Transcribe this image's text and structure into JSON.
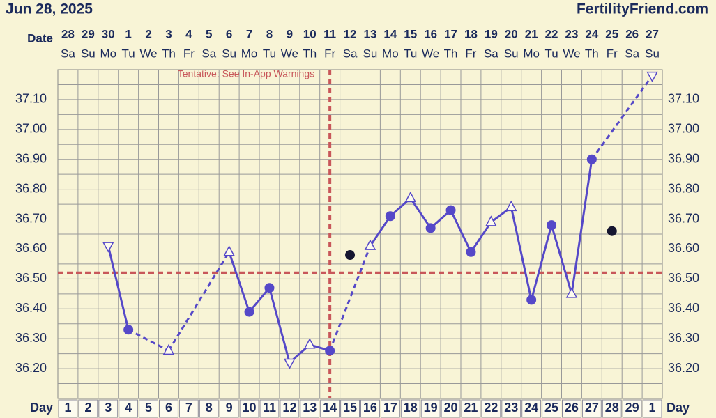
{
  "chart_data": {
    "type": "line",
    "title": "Jun 28, 2025",
    "source": "FertilityFriend.com",
    "date_label": "Date",
    "day_label": "Day",
    "dates": [
      28,
      29,
      30,
      1,
      2,
      3,
      4,
      5,
      6,
      7,
      8,
      9,
      10,
      11,
      12,
      13,
      14,
      15,
      16,
      17,
      18,
      19,
      20,
      21,
      22,
      23,
      24,
      25,
      26,
      27
    ],
    "weekdays": [
      "Sa",
      "Su",
      "Mo",
      "Tu",
      "We",
      "Th",
      "Fr",
      "Sa",
      "Su",
      "Mo",
      "Tu",
      "We",
      "Th",
      "Fr",
      "Sa",
      "Su",
      "Mo",
      "Tu",
      "We",
      "Th",
      "Fr",
      "Sa",
      "Su",
      "Mo",
      "Tu",
      "We",
      "Th",
      "Fr",
      "Sa",
      "Su"
    ],
    "categories": [
      1,
      2,
      3,
      4,
      5,
      6,
      7,
      8,
      9,
      10,
      11,
      12,
      13,
      14,
      15,
      16,
      17,
      18,
      19,
      20,
      21,
      22,
      23,
      24,
      25,
      26,
      27,
      28,
      29,
      1
    ],
    "series": [
      {
        "color": "#5548c8",
        "values": [
          null,
          null,
          36.61,
          36.33,
          null,
          36.26,
          null,
          null,
          36.59,
          36.39,
          36.47,
          36.22,
          36.28,
          36.26,
          null,
          36.61,
          36.71,
          36.77,
          36.67,
          36.73,
          36.59,
          36.69,
          36.74,
          36.43,
          36.68,
          36.45,
          36.9,
          null,
          null,
          37.18
        ],
        "markers": [
          null,
          null,
          "triangle-down",
          "circle",
          null,
          "triangle-up",
          null,
          null,
          "triangle-up",
          "circle",
          "circle",
          "triangle-down",
          "triangle-up",
          "circle",
          null,
          "triangle-up",
          "circle",
          "triangle-up",
          "circle",
          "circle",
          "circle",
          "triangle-up",
          "triangle-up",
          "circle",
          "circle",
          "triangle-up",
          "circle",
          null,
          null,
          "triangle-down"
        ]
      },
      {
        "color": "#151530",
        "values": [
          null,
          null,
          null,
          null,
          null,
          null,
          null,
          null,
          null,
          null,
          null,
          null,
          null,
          null,
          36.58,
          null,
          null,
          null,
          null,
          null,
          null,
          null,
          null,
          null,
          null,
          null,
          null,
          36.66,
          null,
          null
        ]
      }
    ],
    "coverline": 36.52,
    "ovulation_day": 14,
    "annotation": "Tentative: See In-App Warnings",
    "ylim": [
      36.1,
      37.2
    ],
    "yticks": [
      {
        "value": 36.2,
        "label": "36.20"
      },
      {
        "value": 36.3,
        "label": "36.30"
      },
      {
        "value": 36.4,
        "label": "36.40"
      },
      {
        "value": 36.5,
        "label": "36.50"
      },
      {
        "value": 36.6,
        "label": "36.60"
      },
      {
        "value": 36.7,
        "label": "36.70"
      },
      {
        "value": 36.8,
        "label": "36.80"
      },
      {
        "value": 36.9,
        "label": "36.90"
      },
      {
        "value": 37.0,
        "label": "37.00"
      },
      {
        "value": 37.1,
        "label": "37.10"
      }
    ],
    "grid": true
  }
}
